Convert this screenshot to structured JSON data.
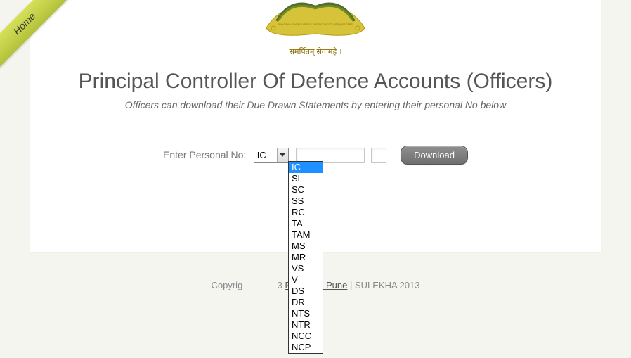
{
  "ribbon": {
    "label": "Home"
  },
  "emblem": {
    "top_line": "PRINCIPAL CONTROLLER OF DEFENCE ACCOUNTS (OFFICERS)",
    "motto": "समर्पितम् सेवामहे ।",
    "gold": "#d7c33a",
    "dark_gold": "#b39a12",
    "green": "#556b2f"
  },
  "title": "Principal Controller Of Defence Accounts (Officers)",
  "subtitle": "Officers can download their Due Drawn Statements by entering their personal No below",
  "form": {
    "label": "Enter Personal No:",
    "selected": "IC",
    "options": [
      "IC",
      "SL",
      "SC",
      "SS",
      "RC",
      "TA",
      "TAM",
      "MS",
      "MR",
      "VS",
      "V",
      "DS",
      "DR",
      "NTS",
      "NTR",
      "NCC",
      "NCP"
    ],
    "download_label": "Download"
  },
  "footer": {
    "left": "Copyrig",
    "mid_hidden": "3",
    "link": "PCDA(O) Pune",
    "right": " | SULEKHA 2013"
  },
  "colors": {
    "page_bg": "#f5f5f0",
    "panel_bg": "#ffffff",
    "title_color": "#555555",
    "text_muted": "#777777",
    "dropdown_highlight": "#1e90ff"
  }
}
